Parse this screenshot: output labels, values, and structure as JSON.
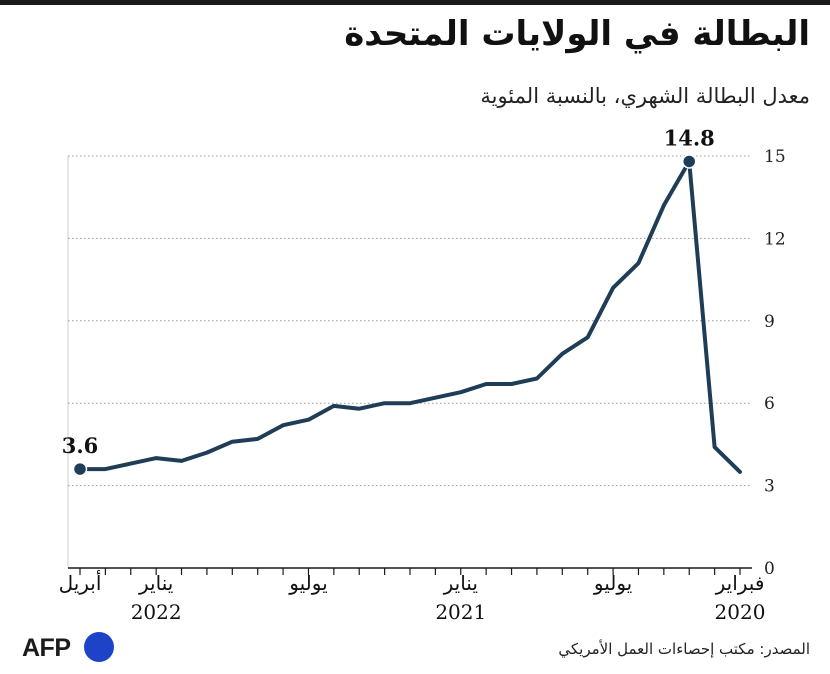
{
  "title": "البطالة في الولايات المتحدة",
  "subtitle": "معدل البطالة الشهري، بالنسبة المئوية",
  "source": "المصدر: مكتب إحصاءات العمل الأمريكي",
  "logo": "AFP",
  "colors": {
    "line": "#1f3d56",
    "grid": "#9a9a9a",
    "axis": "#1a1a1a",
    "logo_dot": "#1f43c8"
  },
  "chart_data": {
    "type": "line",
    "direction": "rtl",
    "x_start": "2020-02",
    "x_end": "2022-04",
    "x": [
      "2020-02",
      "2020-03",
      "2020-04",
      "2020-05",
      "2020-06",
      "2020-07",
      "2020-08",
      "2020-09",
      "2020-10",
      "2020-11",
      "2020-12",
      "2021-01",
      "2021-02",
      "2021-03",
      "2021-04",
      "2021-05",
      "2021-06",
      "2021-07",
      "2021-08",
      "2021-09",
      "2021-10",
      "2021-11",
      "2021-12",
      "2022-01",
      "2022-02",
      "2022-03",
      "2022-04"
    ],
    "values": [
      3.5,
      4.4,
      14.8,
      13.2,
      11.1,
      10.2,
      8.4,
      7.8,
      6.9,
      6.7,
      6.7,
      6.4,
      6.2,
      6.0,
      6.0,
      5.8,
      5.9,
      5.4,
      5.2,
      4.7,
      4.6,
      4.2,
      3.9,
      4.0,
      3.8,
      3.6,
      3.6
    ],
    "ylim": [
      0,
      15
    ],
    "yticks": [
      0,
      3,
      6,
      9,
      12,
      15
    ],
    "grid": "horizontal-dotted",
    "annotations": [
      {
        "x": "2020-04",
        "value": "14.8"
      },
      {
        "x": "2022-04",
        "value": "3.6"
      }
    ],
    "xtick_labels": [
      {
        "x": "2020-02",
        "month": "فبراير",
        "year": "2020"
      },
      {
        "x": "2020-07",
        "month": "يوليو",
        "year": ""
      },
      {
        "x": "2021-01",
        "month": "يناير",
        "year": "2021"
      },
      {
        "x": "2021-07",
        "month": "يوليو",
        "year": ""
      },
      {
        "x": "2022-01",
        "month": "يناير",
        "year": "2022"
      },
      {
        "x": "2022-04",
        "month": "أبريل",
        "year": ""
      }
    ]
  }
}
